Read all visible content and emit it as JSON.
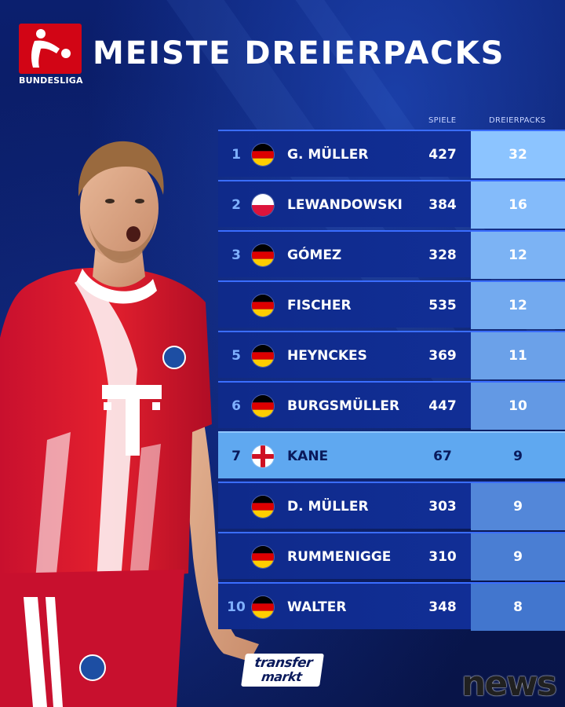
{
  "header": {
    "logo_text": "BUNDESLIGA",
    "title": "MEISTE DREIERPACKS"
  },
  "table": {
    "col_games": "SPIELE",
    "col_hattricks": "DREIERPACKS",
    "rows": [
      {
        "rank": "1",
        "flag": "germany-flag-icon",
        "name": "G. MÜLLER",
        "games": "427",
        "hattricks": "32",
        "hat_level": 1.0
      },
      {
        "rank": "2",
        "flag": "poland-flag-icon",
        "name": "LEWANDOWSKI",
        "games": "384",
        "hattricks": "16",
        "hat_level": 0.9
      },
      {
        "rank": "3",
        "flag": "germany-flag-icon",
        "name": "GÓMEZ",
        "games": "328",
        "hattricks": "12",
        "hat_level": 0.8
      },
      {
        "rank": "",
        "flag": "germany-flag-icon",
        "name": "FISCHER",
        "games": "535",
        "hattricks": "12",
        "hat_level": 0.7
      },
      {
        "rank": "5",
        "flag": "germany-flag-icon",
        "name": "HEYNCKES",
        "games": "369",
        "hattricks": "11",
        "hat_level": 0.6
      },
      {
        "rank": "6",
        "flag": "germany-flag-icon",
        "name": "BURGSMÜLLER",
        "games": "447",
        "hattricks": "10",
        "hat_level": 0.5
      },
      {
        "rank": "7",
        "flag": "england-flag-icon",
        "name": "KANE",
        "games": "67",
        "hattricks": "9",
        "hat_level": 0.4,
        "highlight": true
      },
      {
        "rank": "",
        "flag": "germany-flag-icon",
        "name": "D. MÜLLER",
        "games": "303",
        "hattricks": "9",
        "hat_level": 0.3
      },
      {
        "rank": "",
        "flag": "germany-flag-icon",
        "name": "RUMMENIGGE",
        "games": "310",
        "hattricks": "9",
        "hat_level": 0.2
      },
      {
        "rank": "10",
        "flag": "germany-flag-icon",
        "name": "WALTER",
        "games": "348",
        "hattricks": "8",
        "hat_level": 0.1
      }
    ]
  },
  "colors": {
    "background": "#0a1a5c",
    "row": "#12309a",
    "highlight_row": "#5fa8f0",
    "bundesliga_red": "#d20515"
  },
  "footer": {
    "transfermarkt_top": "transfer",
    "transfermarkt_bottom": "markt",
    "watermark": "news"
  }
}
